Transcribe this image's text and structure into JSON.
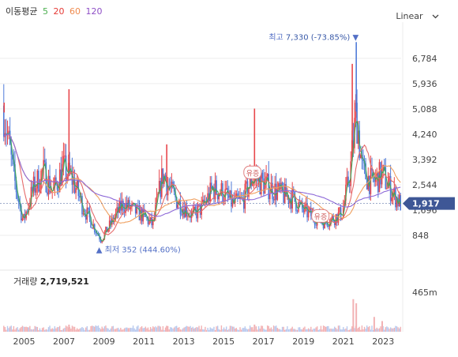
{
  "legend": {
    "title": "이동평균",
    "ma": [
      {
        "label": "5",
        "color": "#4caf50"
      },
      {
        "label": "20",
        "color": "#e53935"
      },
      {
        "label": "60",
        "color": "#ef8a4e"
      },
      {
        "label": "120",
        "color": "#8e4ec6"
      }
    ]
  },
  "scale_button": "Linear",
  "volume": {
    "label": "거래량",
    "value": "2,719,521",
    "axis_tick": "465m"
  },
  "colors": {
    "up": "#e8474c",
    "down": "#4f7bd9",
    "ma5": "#3fa85a",
    "ma20": "#e56a6a",
    "ma60": "#efa060",
    "ma120": "#8e6ad8",
    "current_badge": "#3e5796",
    "volume_up": "#f2b2b4",
    "volume_down": "#b8c9ee"
  },
  "chart_data": {
    "type": "candlestick",
    "x_ticks": [
      "2005",
      "2007",
      "2009",
      "2011",
      "2013",
      "2015",
      "2017",
      "2019",
      "2021",
      "2023"
    ],
    "y_ticks": [
      848,
      1696,
      2544,
      3392,
      4240,
      5088,
      5936,
      6784
    ],
    "current_price": "1,917",
    "high": {
      "label": "최고",
      "value": "7,330",
      "change": "(-73.85%)",
      "year": 2021.7
    },
    "low": {
      "label": "최저",
      "value": "352",
      "change": "(444.60%)",
      "year": 2008.9
    },
    "events": [
      {
        "label": "유증",
        "year": 2016.5
      },
      {
        "label": "유증",
        "year": 2019.9
      }
    ],
    "price_keypoints": [
      [
        2004.0,
        5200
      ],
      [
        2004.5,
        2900
      ],
      [
        2005.0,
        1300
      ],
      [
        2005.5,
        2400
      ],
      [
        2006.0,
        3000
      ],
      [
        2006.5,
        2300
      ],
      [
        2007.0,
        3100
      ],
      [
        2007.5,
        2700
      ],
      [
        2008.0,
        1800
      ],
      [
        2008.5,
        1200
      ],
      [
        2008.9,
        700
      ],
      [
        2009.5,
        1350
      ],
      [
        2010.0,
        1900
      ],
      [
        2010.5,
        1700
      ],
      [
        2011.0,
        1500
      ],
      [
        2011.5,
        1200
      ],
      [
        2012.0,
        2900
      ],
      [
        2012.5,
        2200
      ],
      [
        2013.0,
        1800
      ],
      [
        2013.5,
        1500
      ],
      [
        2014.0,
        1800
      ],
      [
        2014.5,
        2400
      ],
      [
        2015.0,
        2300
      ],
      [
        2015.5,
        1900
      ],
      [
        2016.0,
        2000
      ],
      [
        2016.5,
        2800
      ],
      [
        2017.0,
        2600
      ],
      [
        2017.5,
        2400
      ],
      [
        2018.0,
        2200
      ],
      [
        2018.5,
        2100
      ],
      [
        2019.0,
        1700
      ],
      [
        2019.5,
        1500
      ],
      [
        2020.0,
        1300
      ],
      [
        2020.5,
        1400
      ],
      [
        2021.0,
        1600
      ],
      [
        2021.4,
        3000
      ],
      [
        2021.7,
        5000
      ],
      [
        2022.0,
        3000
      ],
      [
        2022.5,
        2600
      ],
      [
        2023.0,
        2900
      ],
      [
        2023.5,
        2300
      ],
      [
        2023.9,
        1917
      ]
    ],
    "spikes": [
      {
        "year": 2004.05,
        "high": 5300
      },
      {
        "year": 2007.3,
        "high": 5750
      },
      {
        "year": 2012.2,
        "high": 3900
      },
      {
        "year": 2016.6,
        "high": 5100
      },
      {
        "year": 2021.5,
        "high": 6600
      },
      {
        "year": 2021.7,
        "high": 7330
      }
    ],
    "volume_spikes": [
      {
        "year": 2021.55,
        "rel": 0.55
      },
      {
        "year": 2021.7,
        "rel": 0.48
      },
      {
        "year": 2022.6,
        "rel": 0.25
      },
      {
        "year": 2023.0,
        "rel": 0.18
      },
      {
        "year": 2016.6,
        "rel": 0.12
      },
      {
        "year": 2012.2,
        "rel": 0.1
      },
      {
        "year": 2007.3,
        "rel": 0.12
      }
    ],
    "scale": "linear"
  }
}
